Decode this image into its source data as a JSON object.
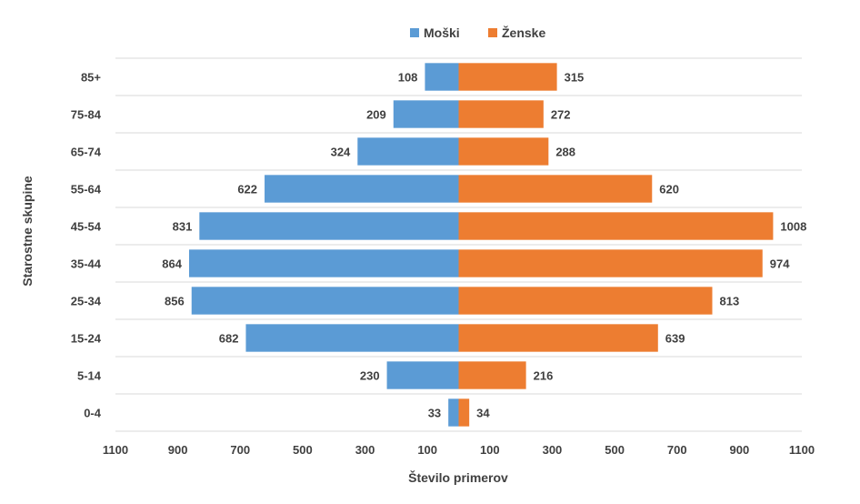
{
  "chart_data": {
    "type": "bar",
    "orientation": "horizontal",
    "style": "population-pyramid",
    "categories": [
      "0-4",
      "5-14",
      "15-24",
      "25-34",
      "35-44",
      "45-54",
      "55-64",
      "65-74",
      "75-84",
      "85+"
    ],
    "series": [
      {
        "name": "Moški",
        "color": "#5B9BD5",
        "side": "left",
        "values": [
          33,
          230,
          682,
          856,
          864,
          831,
          622,
          324,
          209,
          108
        ]
      },
      {
        "name": "Ženske",
        "color": "#ED7D31",
        "side": "right",
        "values": [
          34,
          216,
          639,
          813,
          974,
          1008,
          620,
          288,
          272,
          315
        ]
      }
    ],
    "x_ticks": [
      "1100",
      "900",
      "700",
      "500",
      "300",
      "100",
      "100",
      "300",
      "500",
      "700",
      "900",
      "1100"
    ],
    "xlabel": "Število primerov",
    "ylabel": "Starostne skupine",
    "xlim": [
      -1100,
      1100
    ],
    "legend_position": "top-center",
    "grid": "horizontal"
  }
}
